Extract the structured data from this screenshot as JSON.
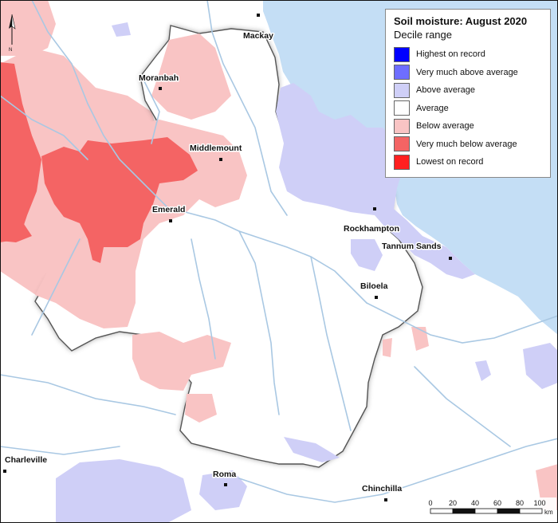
{
  "legend": {
    "title": "Soil moisture: August 2020",
    "subtitle": "Decile range",
    "items": [
      {
        "label": "Highest on record",
        "color": "#0000ff"
      },
      {
        "label": "Very much above average",
        "color": "#6e6eff"
      },
      {
        "label": "Above average",
        "color": "#cfcff7"
      },
      {
        "label": "Average",
        "color": "#ffffff"
      },
      {
        "label": "Below average",
        "color": "#f9c4c4"
      },
      {
        "label": "Very much below average",
        "color": "#f46464"
      },
      {
        "label": "Lowest on record",
        "color": "#ff2020"
      }
    ]
  },
  "places": {
    "mackay": "Mackay",
    "moranbah": "Moranbah",
    "middlemount": "Middlemount",
    "emerald": "Emerald",
    "rockhampton": "Rockhampton",
    "tannum_sands": "Tannum Sands",
    "biloela": "Biloela",
    "charleville": "Charleville",
    "roma": "Roma",
    "chinchilla": "Chinchilla"
  },
  "north_arrow": {
    "label": "N"
  },
  "scale_bar": {
    "ticks": [
      "0",
      "20",
      "40",
      "60",
      "80",
      "100"
    ],
    "unit": "km"
  },
  "colors": {
    "ocean": "#c4def5",
    "land": "#ffffff",
    "river": "#a9c8e3",
    "boundary_shadow": "#555555"
  }
}
